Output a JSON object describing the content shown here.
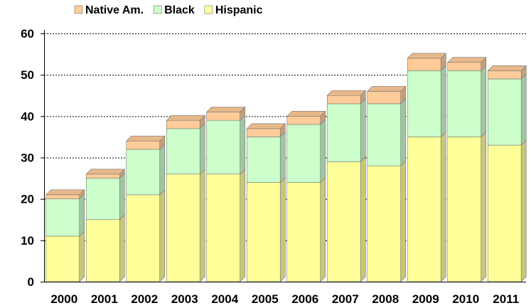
{
  "chart_data": {
    "type": "bar",
    "stacked": true,
    "style": "3d",
    "categories": [
      "2000",
      "2001",
      "2002",
      "2003",
      "2004",
      "2005",
      "2006",
      "2007",
      "2008",
      "2009",
      "2010",
      "2011"
    ],
    "series": [
      {
        "name": "Hispanic",
        "color": "#FFFF99",
        "values": [
          11,
          15,
          21,
          26,
          26,
          24,
          24,
          29,
          28,
          35,
          35,
          33
        ]
      },
      {
        "name": "Black",
        "color": "#CCFFCC",
        "values": [
          9,
          10,
          11,
          11,
          13,
          11,
          14,
          14,
          15,
          16,
          16,
          16
        ]
      },
      {
        "name": "Native Am.",
        "color": "#FFCC99",
        "values": [
          1,
          1,
          2,
          2,
          2,
          2,
          2,
          2,
          3,
          3,
          2,
          2
        ]
      }
    ],
    "legend_order": [
      "Native Am.",
      "Black",
      "Hispanic"
    ],
    "yticks": [
      "0",
      "10",
      "20",
      "30",
      "40",
      "50",
      "60"
    ],
    "ylim": [
      0,
      60
    ],
    "grid": true,
    "legend_position": "top",
    "title": "",
    "xlabel": "",
    "ylabel": ""
  }
}
